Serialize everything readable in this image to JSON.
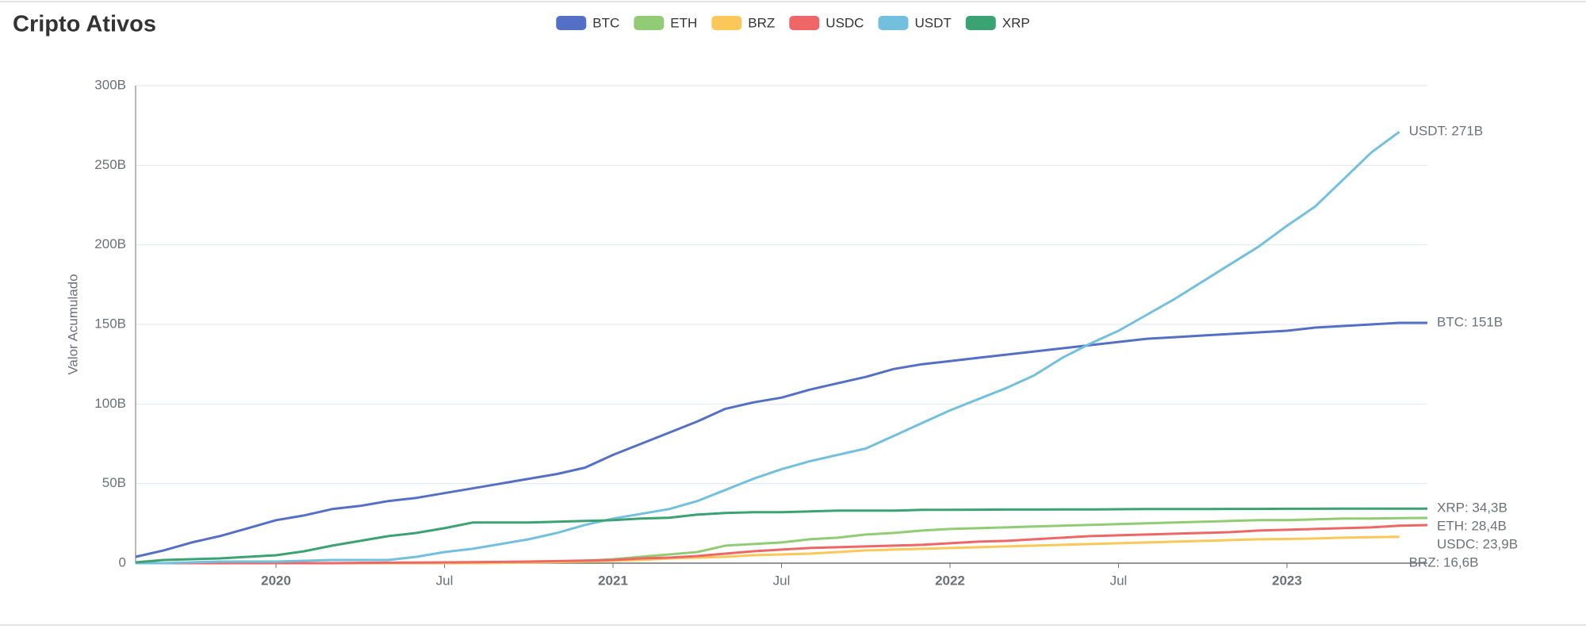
{
  "chart_data": {
    "type": "line",
    "title": "Cripto Ativos",
    "y_label": "Valor Acumulado",
    "legend": "top",
    "grid": true,
    "x": [
      "2019-08",
      "2019-09",
      "2019-10",
      "2019-11",
      "2019-12",
      "2020-01",
      "2020-02",
      "2020-03",
      "2020-04",
      "2020-05",
      "2020-06",
      "2020-07",
      "2020-08",
      "2020-09",
      "2020-10",
      "2020-11",
      "2020-12",
      "2021-01",
      "2021-02",
      "2021-03",
      "2021-04",
      "2021-05",
      "2021-06",
      "2021-07",
      "2021-08",
      "2021-09",
      "2021-10",
      "2021-11",
      "2021-12",
      "2022-01",
      "2022-02",
      "2022-03",
      "2022-04",
      "2022-05",
      "2022-06",
      "2022-07",
      "2022-08",
      "2022-09",
      "2022-10",
      "2022-11",
      "2022-12",
      "2023-01",
      "2023-02",
      "2023-03",
      "2023-04",
      "2023-05",
      "2023-06"
    ],
    "xlim": [
      "2019-08",
      "2023-06"
    ],
    "xticks": [
      {
        "value": "2020-01",
        "label": "2020"
      },
      {
        "value": "2020-07",
        "label": "Jul"
      },
      {
        "value": "2021-01",
        "label": "2021"
      },
      {
        "value": "2021-07",
        "label": "Jul"
      },
      {
        "value": "2022-01",
        "label": "2022"
      },
      {
        "value": "2022-07",
        "label": "Jul"
      },
      {
        "value": "2023-01",
        "label": "2023"
      }
    ],
    "ylim": [
      0,
      300
    ],
    "yticks": [
      0,
      {
        "value": 50,
        "label": "50B"
      },
      {
        "value": 100,
        "label": "100B"
      },
      {
        "value": 150,
        "label": "150B"
      },
      {
        "value": 200,
        "label": "200B"
      },
      {
        "value": 250,
        "label": "250B"
      },
      {
        "value": 300,
        "label": "300B"
      }
    ],
    "series": [
      {
        "name": "BTC",
        "color": "#5470c6",
        "end_label": "BTC: 151B",
        "values": [
          4,
          8,
          13,
          17,
          22,
          27,
          30,
          34,
          36,
          39,
          41,
          44,
          47,
          50,
          53,
          56,
          60,
          68,
          75,
          82,
          89,
          97,
          101,
          104,
          109,
          113,
          117,
          122,
          125,
          127,
          129,
          131,
          133,
          135,
          137,
          139,
          141,
          142,
          143,
          144,
          145,
          146,
          148,
          149,
          150,
          151,
          151
        ]
      },
      {
        "name": "ETH",
        "color": "#91cc75",
        "end_label": "ETH: 28,4B",
        "values": [
          0,
          0,
          0,
          0,
          0,
          0,
          0,
          0,
          0,
          0,
          0,
          0,
          0,
          0.2,
          0.5,
          1,
          1.5,
          2.5,
          4,
          5.5,
          7,
          11,
          12,
          13,
          15,
          16,
          18,
          19,
          20.5,
          21.5,
          22,
          22.5,
          23,
          23.5,
          24,
          24.5,
          25,
          25.5,
          26,
          26.5,
          27,
          27,
          27.5,
          28,
          28,
          28.3,
          28.4
        ]
      },
      {
        "name": "BRZ",
        "color": "#fac858",
        "end_label": "BRZ: 16,6B",
        "values": [
          0,
          0,
          0,
          0,
          0,
          0,
          0,
          0,
          0,
          0,
          0,
          0,
          0,
          0.2,
          0.4,
          0.7,
          1,
          1.5,
          2,
          3,
          3.5,
          4,
          5,
          5.5,
          6,
          7,
          8,
          8.5,
          9,
          9.5,
          10,
          10.5,
          11,
          11.5,
          12,
          12.5,
          13,
          13.5,
          14,
          14.5,
          15,
          15.2,
          15.5,
          16,
          16.3,
          16.6,
          null
        ]
      },
      {
        "name": "USDC",
        "color": "#ee6666",
        "end_label": "USDC: 23,9B",
        "values": [
          0,
          0,
          0,
          0,
          0,
          0,
          0,
          0,
          0.2,
          0.3,
          0.4,
          0.5,
          0.6,
          0.8,
          1,
          1.3,
          1.6,
          2,
          3,
          3.5,
          4.5,
          6,
          7.5,
          8.5,
          9.5,
          10,
          10.5,
          11,
          11.5,
          12.5,
          13.5,
          14,
          15,
          16,
          17,
          17.5,
          18,
          18.5,
          19,
          19.5,
          20.5,
          21,
          21.5,
          22,
          22.5,
          23.5,
          23.9
        ]
      },
      {
        "name": "USDT",
        "color": "#73c0de",
        "end_label": "USDT: 271B",
        "values": [
          0,
          0,
          0.5,
          1,
          1,
          1,
          1.5,
          2,
          2,
          2,
          4,
          7,
          9,
          12,
          15,
          19,
          24,
          28,
          31,
          34,
          39,
          46,
          53,
          59,
          64,
          68,
          72,
          80,
          88,
          96,
          103,
          110,
          118,
          129,
          138,
          146,
          156,
          166,
          177,
          188,
          199,
          212,
          224,
          241,
          258,
          271,
          null
        ]
      },
      {
        "name": "XRP",
        "color": "#3ba272",
        "end_label": "XRP: 34,3B",
        "values": [
          0.5,
          2,
          2.5,
          3,
          4,
          5,
          7.5,
          11,
          14,
          17,
          19,
          22,
          25.5,
          25.5,
          25.5,
          26,
          26.5,
          27,
          28,
          28.5,
          30.5,
          31.5,
          32,
          32,
          32.5,
          33,
          33,
          33,
          33.5,
          33.5,
          33.6,
          33.7,
          33.7,
          33.8,
          33.8,
          33.9,
          34,
          34,
          34,
          34.1,
          34.1,
          34.2,
          34.2,
          34.3,
          34.3,
          34.3,
          34.3
        ]
      }
    ]
  }
}
